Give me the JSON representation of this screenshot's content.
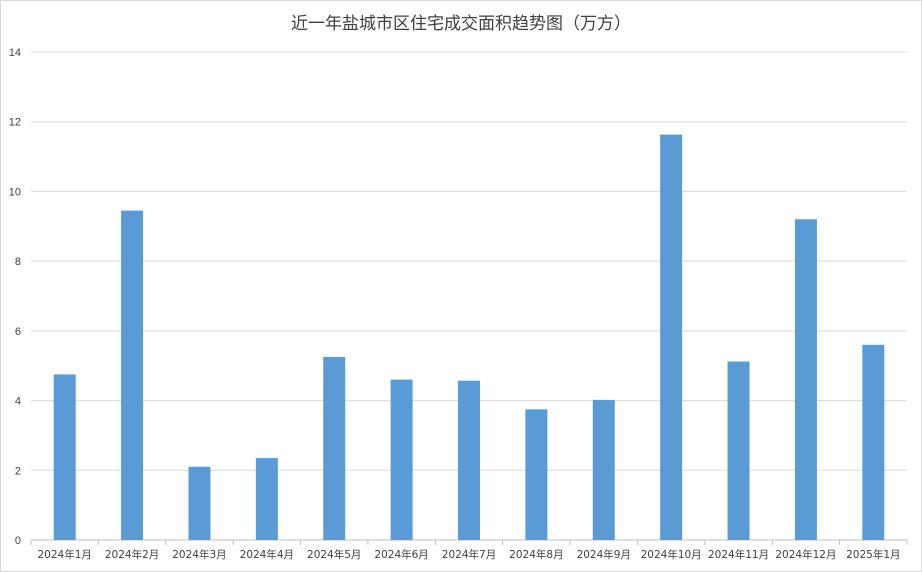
{
  "chart_data": {
    "type": "bar",
    "title": "近一年盐城市区住宅成交面积趋势图（万方）",
    "categories": [
      "2024年1月",
      "2024年2月",
      "2024年3月",
      "2024年4月",
      "2024年5月",
      "2024年6月",
      "2024年7月",
      "2024年8月",
      "2024年9月",
      "2024年10月",
      "2024年11月",
      "2024年12月",
      "2025年1月"
    ],
    "values": [
      4.75,
      9.45,
      2.1,
      2.35,
      5.25,
      4.6,
      4.57,
      3.75,
      4.02,
      11.63,
      5.12,
      9.2,
      5.6
    ],
    "ylim": [
      0,
      14
    ],
    "yticks": [
      "0",
      "2",
      "4",
      "6",
      "8",
      "10",
      "12",
      "14"
    ],
    "grid": true,
    "bar_color": "#5b9bd5",
    "grid_color": "#d9d9d9",
    "text_color": "#404040"
  }
}
